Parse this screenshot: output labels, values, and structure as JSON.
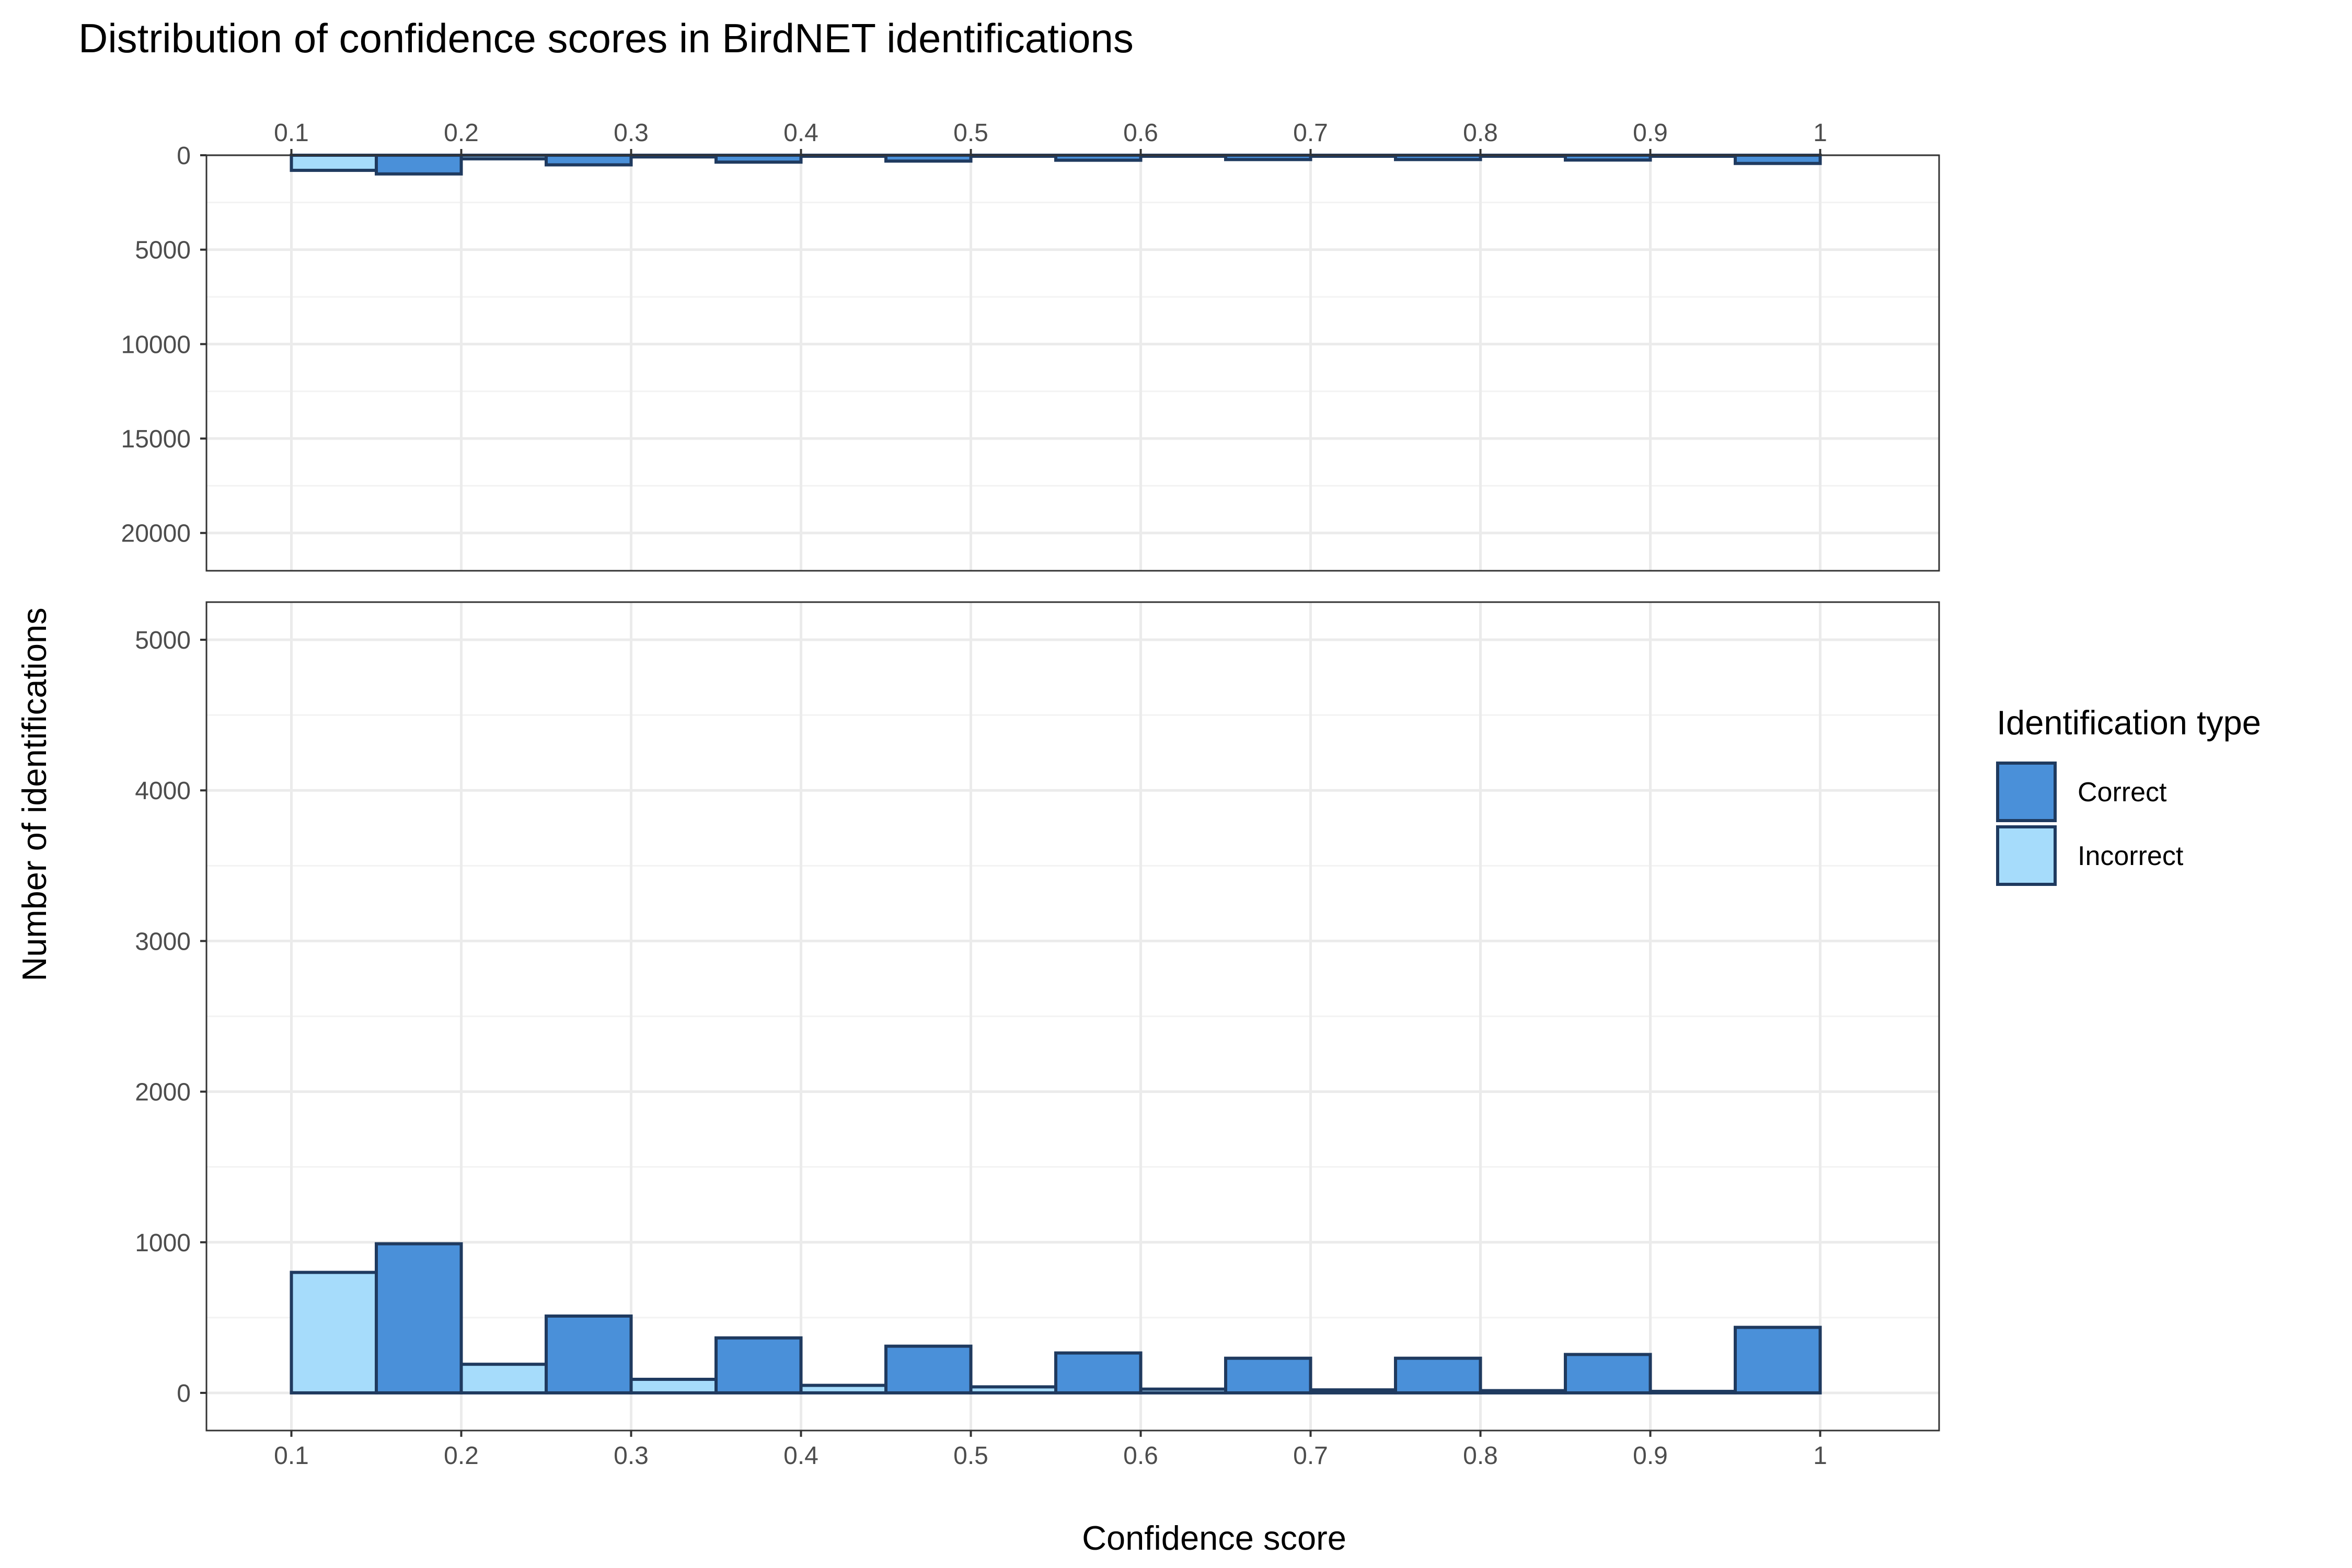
{
  "chart_data": {
    "type": "bar",
    "title": "Distribution of confidence scores in BirdNET identifications",
    "xlabel": "Confidence score",
    "ylabel": "Number of identifications",
    "x_ticks": [
      "0.1",
      "0.2",
      "0.3",
      "0.4",
      "0.5",
      "0.6",
      "0.7",
      "0.8",
      "0.9",
      "1"
    ],
    "xlim": [
      0.05,
      1.07
    ],
    "bin_width": 0.1,
    "bin_starts": [
      0.1,
      0.2,
      0.3,
      0.4,
      0.5,
      0.6,
      0.7,
      0.8,
      0.9
    ],
    "series": [
      {
        "name": "Correct",
        "color": "#4a90d9",
        "values": [
          990,
          510,
          365,
          310,
          265,
          230,
          230,
          255,
          435
        ]
      },
      {
        "name": "Incorrect",
        "color": "#a6dcfb",
        "values": [
          800,
          190,
          90,
          50,
          40,
          25,
          20,
          15,
          10
        ]
      }
    ],
    "bar_outline_color": "#1f3a5f",
    "panels": [
      {
        "name": "top",
        "ylim": [
          0,
          22000
        ],
        "y_reversed": true,
        "y_ticks": [
          "0",
          "5000",
          "10000",
          "15000",
          "20000"
        ],
        "x_axis_position": "top"
      },
      {
        "name": "bottom",
        "ylim": [
          -250,
          5250
        ],
        "y_reversed": false,
        "y_ticks": [
          "0",
          "1000",
          "2000",
          "3000",
          "4000",
          "5000"
        ],
        "x_axis_position": "bottom"
      }
    ],
    "grid": true,
    "legend": {
      "title": "Identification type",
      "position": "right",
      "entries": [
        "Correct",
        "Incorrect"
      ]
    }
  }
}
